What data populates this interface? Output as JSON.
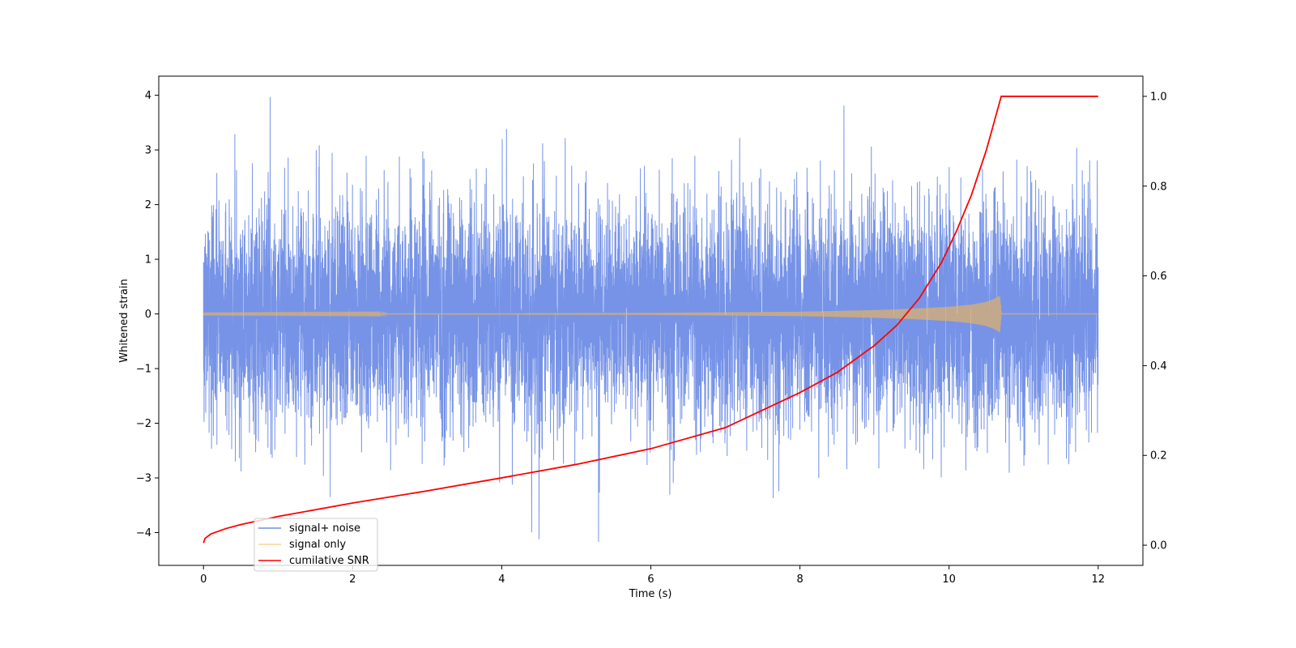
{
  "chart_data": {
    "type": "line",
    "title": "",
    "xlabel": "Time (s)",
    "ylabel": "Whitened strain",
    "y2label": "",
    "xlim": [
      -0.6,
      12.6
    ],
    "ylim": [
      -4.6,
      4.35
    ],
    "y2lim": [
      -0.045,
      1.045
    ],
    "x_ticks": [
      0,
      2,
      4,
      6,
      8,
      10,
      12
    ],
    "y_ticks": [
      -4,
      -3,
      -2,
      -1,
      0,
      1,
      2,
      3,
      4
    ],
    "y2_ticks": [
      0.0,
      0.2,
      0.4,
      0.6,
      0.8,
      1.0
    ],
    "x_tick_labels": [
      "0",
      "2",
      "4",
      "6",
      "8",
      "10",
      "12"
    ],
    "y_tick_labels": [
      "−4",
      "−3",
      "−2",
      "−1",
      "0",
      "1",
      "2",
      "3",
      "4"
    ],
    "y2_tick_labels": [
      "0.0",
      "0.2",
      "0.4",
      "0.6",
      "0.8",
      "1.0"
    ],
    "grid": false,
    "legend": {
      "placement": "lower-left",
      "entries": [
        "signal+ noise",
        "signal only",
        "cumilative SNR"
      ]
    },
    "colors": {
      "noise": "#6f8de6",
      "signal": "#f5b652",
      "snr": "#ff0000"
    },
    "series": [
      {
        "name": "signal+ noise",
        "axis": "left",
        "kind": "gaussian-noise",
        "x_range": [
          0,
          12
        ],
        "std": 1.0,
        "peak_max": 3.97,
        "peak_min": -4.17
      },
      {
        "name": "signal only",
        "axis": "left",
        "kind": "chirp-envelope",
        "x": [
          0,
          2,
          4,
          6,
          8,
          9,
          9.5,
          10,
          10.3,
          10.5,
          10.6,
          10.68,
          10.7,
          12
        ],
        "amplitude": [
          0.005,
          0.008,
          0.012,
          0.018,
          0.04,
          0.07,
          0.095,
          0.13,
          0.17,
          0.22,
          0.27,
          0.33,
          0.0,
          0.0
        ]
      },
      {
        "name": "cumilative SNR",
        "axis": "right",
        "x": [
          0,
          0.02,
          0.1,
          0.3,
          0.5,
          1,
          2,
          3,
          4,
          5,
          6,
          7,
          8,
          8.5,
          9,
          9.3,
          9.6,
          9.9,
          10.1,
          10.3,
          10.5,
          10.6,
          10.7,
          12
        ],
        "y": [
          0.005,
          0.015,
          0.025,
          0.037,
          0.046,
          0.064,
          0.094,
          0.121,
          0.15,
          0.18,
          0.215,
          0.262,
          0.34,
          0.385,
          0.445,
          0.49,
          0.55,
          0.63,
          0.7,
          0.78,
          0.88,
          0.94,
          1.0,
          1.0
        ]
      }
    ]
  }
}
